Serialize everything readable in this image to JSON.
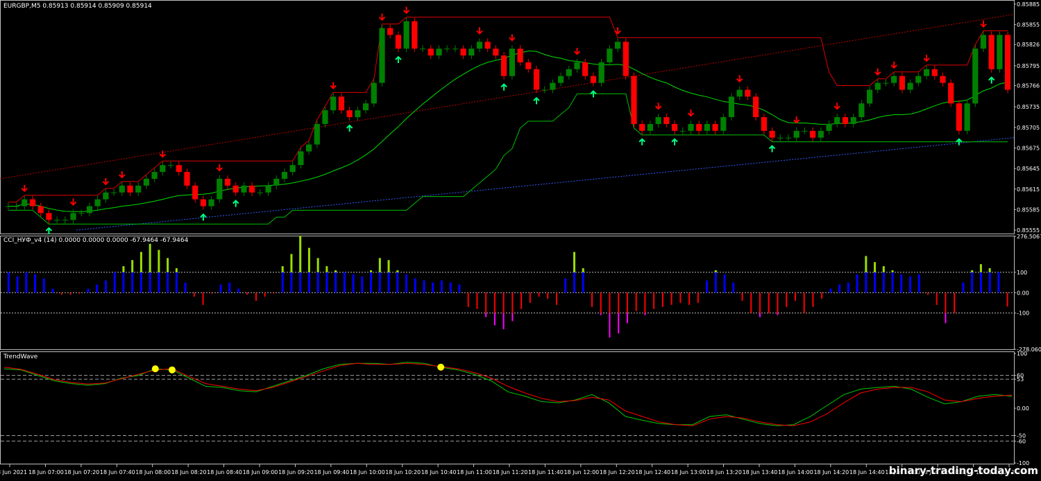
{
  "main": {
    "header": "EURGBP,M5  0.85913 0.85914 0.85909 0.85914",
    "ticks": [
      "0.85885",
      "0.85855",
      "0.85826",
      "0.85795",
      "0.85766",
      "0.85735",
      "0.85705",
      "0.85675",
      "0.85645",
      "0.85615",
      "0.85585",
      "0.85555"
    ],
    "tickValues": [
      0.85885,
      0.85855,
      0.85826,
      0.85795,
      0.85766,
      0.85735,
      0.85705,
      0.85675,
      0.85645,
      0.85615,
      0.85585,
      0.85555
    ],
    "ylim": [
      0.8555,
      0.8589
    ]
  },
  "cci": {
    "header": "CCI_НУФ_v4 (14) 0.0000 0.0000 0.0000 -67.9464 -67.9464",
    "ticks": [
      "276.5067",
      "100",
      "0.00",
      "-100",
      "-278.0605"
    ],
    "tickValues": [
      276.5067,
      100,
      0,
      -100,
      -278.0605
    ],
    "ylim": [
      -278.0605,
      276.5067
    ]
  },
  "trendwave": {
    "header": "TrendWave",
    "ticks": [
      "100",
      "60",
      "53",
      "0.00",
      "-50",
      "-60",
      "-100"
    ],
    "tickValues": [
      100,
      60,
      53,
      0,
      -50,
      -60,
      -100
    ],
    "ylim": [
      -100,
      100
    ]
  },
  "xaxis": [
    "18 Jun 2021",
    "18 Jun 07:00",
    "18 Jun 07:20",
    "18 Jun 07:40",
    "18 Jun 08:00",
    "18 Jun 08:20",
    "18 Jun 08:40",
    "18 Jun 09:00",
    "18 Jun 09:20",
    "18 Jun 09:40",
    "18 Jun 10:00",
    "18 Jun 10:20",
    "18 Jun 10:40",
    "18 Jun 11:00",
    "18 Jun 11:20",
    "18 Jun 11:40",
    "18 Jun 12:00",
    "18 Jun 12:20",
    "18 Jun 12:40",
    "18 Jun 13:00",
    "18 Jun 13:20",
    "18 Jun 13:40",
    "18 Jun 14:00",
    "18 Jun 14:20",
    "18 Jun 14:40",
    "18 Jun 15:00",
    "18 Jun 15:20",
    "18 Jun 15:40",
    "18 Jun 16:00"
  ],
  "watermark": "binary-trading-today.com",
  "colors": {
    "bull": "#008000",
    "bear": "#ff0000",
    "grid": "#c0c0c0",
    "cciBlue": "#0000ff",
    "cciLime": "#9ade00",
    "cciMagenta": "#ff00ff",
    "cciRed": "#ff0000",
    "twGreen": "#00c800",
    "twRed": "#ff0000",
    "dot": "#ffff00",
    "upArrow": "#00ff7f",
    "downArrow": "#ff0000"
  },
  "chart_data": [
    {
      "type": "candlestick",
      "title": "EURGBP,M5",
      "ohlc_last": [
        0.85913,
        0.85914,
        0.85909,
        0.85914
      ],
      "closes_approx": [
        0.8559,
        0.8559,
        0.856,
        0.8559,
        0.8558,
        0.8557,
        0.8557,
        0.8557,
        0.8558,
        0.8558,
        0.8559,
        0.856,
        0.8561,
        0.8561,
        0.8562,
        0.8561,
        0.8562,
        0.8563,
        0.8564,
        0.8565,
        0.8565,
        0.8564,
        0.8562,
        0.856,
        0.8559,
        0.856,
        0.8563,
        0.8562,
        0.8561,
        0.8562,
        0.8561,
        0.8561,
        0.8562,
        0.8563,
        0.8564,
        0.8565,
        0.8567,
        0.8568,
        0.8571,
        0.8573,
        0.8575,
        0.8573,
        0.8572,
        0.8573,
        0.8574,
        0.8577,
        0.8585,
        0.8584,
        0.8582,
        0.8586,
        0.8582,
        0.8582,
        0.8581,
        0.8582,
        0.8582,
        0.8582,
        0.8581,
        0.8582,
        0.8583,
        0.8582,
        0.8581,
        0.8578,
        0.8582,
        0.858,
        0.8579,
        0.8576,
        0.8576,
        0.8577,
        0.8578,
        0.8579,
        0.858,
        0.8578,
        0.8577,
        0.858,
        0.8582,
        0.8583,
        0.8578,
        0.8571,
        0.857,
        0.8571,
        0.8572,
        0.8571,
        0.857,
        0.857,
        0.8571,
        0.857,
        0.8571,
        0.857,
        0.8572,
        0.8575,
        0.8576,
        0.8575,
        0.8572,
        0.857,
        0.8569,
        0.8569,
        0.8569,
        0.857,
        0.857,
        0.8569,
        0.857,
        0.8571,
        0.8572,
        0.8571,
        0.8572,
        0.8574,
        0.8576,
        0.8577,
        0.8577,
        0.8578,
        0.8576,
        0.8577,
        0.8578,
        0.8579,
        0.8578,
        0.8577,
        0.8574,
        0.857,
        0.8574,
        0.8582,
        0.8584,
        0.8579,
        0.8584,
        0.8576
      ]
    },
    {
      "type": "bar",
      "title": "CCI_НУФ_v4 (14)",
      "values": [
        100,
        80,
        100,
        90,
        70,
        20,
        -10,
        -10,
        -5,
        20,
        40,
        60,
        100,
        130,
        160,
        200,
        240,
        210,
        170,
        120,
        50,
        -20,
        -60,
        -5,
        40,
        50,
        20,
        -10,
        -40,
        -20,
        -5,
        130,
        190,
        280,
        220,
        170,
        130,
        110,
        100,
        90,
        80,
        110,
        170,
        160,
        110,
        90,
        70,
        60,
        50,
        60,
        50,
        40,
        -70,
        -80,
        -120,
        -160,
        -180,
        -140,
        -80,
        -50,
        -20,
        -30,
        -60,
        70,
        200,
        120,
        -70,
        -110,
        -220,
        -200,
        -150,
        -90,
        -110,
        -80,
        -70,
        -60,
        -50,
        -60,
        -50,
        60,
        110,
        90,
        50,
        -40,
        -100,
        -120,
        -100,
        -110,
        -70,
        -40,
        -100,
        -70,
        -30,
        20,
        40,
        50,
        90,
        180,
        150,
        130,
        110,
        90,
        80,
        90,
        -10,
        -60,
        -150,
        -100,
        50,
        110,
        140,
        120,
        100,
        -67.9464
      ]
    },
    {
      "type": "line",
      "title": "TrendWave",
      "series": [
        {
          "values": [
            72,
            70,
            60,
            50,
            45,
            42,
            45,
            55,
            60,
            72,
            70,
            55,
            40,
            38,
            32,
            30,
            40,
            50,
            60,
            72,
            80,
            82,
            82,
            80,
            84,
            82,
            75,
            70,
            62,
            50,
            30,
            22,
            12,
            10,
            15,
            25,
            10,
            -15,
            -22,
            -28,
            -30,
            -30,
            -15,
            -12,
            -20,
            -28,
            -32,
            -30,
            -15,
            5,
            25,
            35,
            38,
            40,
            35,
            20,
            8,
            12,
            22,
            25,
            22
          ]
        },
        {
          "values": [
            75,
            71,
            62,
            52,
            47,
            44,
            46,
            54,
            62,
            70,
            72,
            58,
            45,
            40,
            35,
            32,
            38,
            48,
            58,
            68,
            78,
            82,
            80,
            80,
            82,
            80,
            76,
            72,
            65,
            55,
            40,
            28,
            18,
            12,
            14,
            20,
            15,
            -5,
            -15,
            -25,
            -30,
            -32,
            -20,
            -15,
            -18,
            -25,
            -30,
            -32,
            -25,
            -10,
            10,
            28,
            35,
            38,
            38,
            30,
            15,
            12,
            18,
            22,
            24
          ]
        }
      ],
      "signals_yellow_dots": 3
    }
  ]
}
